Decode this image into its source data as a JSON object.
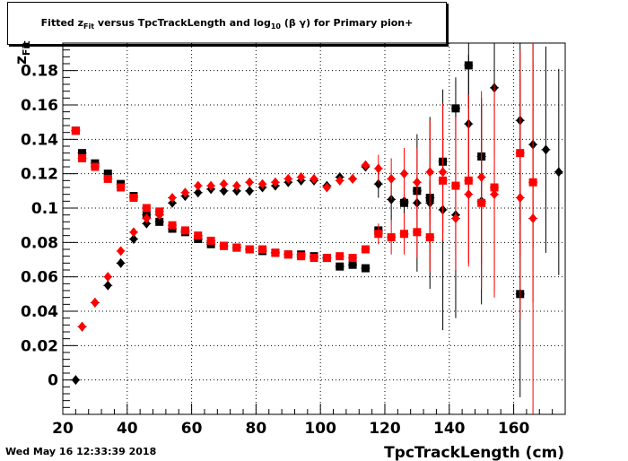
{
  "title": {
    "prefix": "Fitted  z",
    "sub1": "Fit",
    "mid": "  versus TpcTrackLength and log",
    "sub2": "10",
    "suffix": " (β γ) for Primary pion+"
  },
  "timestamp": "Wed May 16 12:33:39 2018",
  "chart_data": {
    "type": "scatter",
    "xlabel": "TpcTrackLength (cm)",
    "ylabel": "z",
    "ylabel_sub": "Fit",
    "xlim": [
      20,
      176
    ],
    "ylim": [
      -0.02,
      0.196
    ],
    "xticks": [
      20,
      40,
      60,
      80,
      100,
      120,
      140,
      160
    ],
    "yticks": [
      0,
      0.02,
      0.04,
      0.06,
      0.08,
      0.1,
      0.12,
      0.14,
      0.16,
      0.18
    ],
    "ytick_labels": [
      "0",
      "0.02",
      "0.04",
      "0.06",
      "0.08",
      "0.1",
      "0.12",
      "0.14",
      "0.16",
      "0.18"
    ],
    "grid": true,
    "colors": {
      "series_black": "#000000",
      "series_red": "#ff0000"
    },
    "series": [
      {
        "color": "#000000",
        "marker": "square",
        "points": [
          [
            24,
            0.145,
            0
          ],
          [
            26,
            0.132,
            0
          ],
          [
            30,
            0.126,
            0
          ],
          [
            34,
            0.12,
            0
          ],
          [
            38,
            0.114,
            0
          ],
          [
            42,
            0.107,
            0
          ],
          [
            46,
            0.096,
            0
          ],
          [
            50,
            0.092,
            0
          ],
          [
            54,
            0.088,
            0
          ],
          [
            58,
            0.086,
            0
          ],
          [
            62,
            0.082,
            0
          ],
          [
            66,
            0.079,
            0
          ],
          [
            70,
            0.078,
            0
          ],
          [
            74,
            0.077,
            0
          ],
          [
            78,
            0.076,
            0
          ],
          [
            82,
            0.075,
            0
          ],
          [
            86,
            0.074,
            0
          ],
          [
            90,
            0.073,
            0
          ],
          [
            94,
            0.073,
            0
          ],
          [
            98,
            0.072,
            0
          ],
          [
            102,
            0.071,
            0
          ],
          [
            106,
            0.066,
            0
          ],
          [
            110,
            0.067,
            0
          ],
          [
            114,
            0.065,
            0
          ],
          [
            118,
            0.087,
            0
          ],
          [
            126,
            0.103,
            0.004
          ],
          [
            130,
            0.11,
            0.008
          ],
          [
            134,
            0.106,
            0.01
          ],
          [
            138,
            0.127,
            0.012
          ],
          [
            142,
            0.158,
            0.018
          ],
          [
            146,
            0.183,
            0.025
          ],
          [
            150,
            0.13,
            0.03
          ],
          [
            162,
            0.05,
            0.06
          ]
        ]
      },
      {
        "color": "#000000",
        "marker": "diamond",
        "points": [
          [
            24,
            0.0,
            0
          ],
          [
            26,
            0.031,
            0
          ],
          [
            30,
            0.045,
            0
          ],
          [
            34,
            0.055,
            0
          ],
          [
            38,
            0.068,
            0
          ],
          [
            42,
            0.082,
            0
          ],
          [
            46,
            0.091,
            0
          ],
          [
            50,
            0.096,
            0
          ],
          [
            54,
            0.103,
            0
          ],
          [
            58,
            0.107,
            0
          ],
          [
            62,
            0.109,
            0
          ],
          [
            66,
            0.111,
            0
          ],
          [
            70,
            0.11,
            0
          ],
          [
            74,
            0.11,
            0
          ],
          [
            78,
            0.11,
            0
          ],
          [
            82,
            0.112,
            0
          ],
          [
            86,
            0.113,
            0
          ],
          [
            90,
            0.115,
            0
          ],
          [
            94,
            0.116,
            0
          ],
          [
            98,
            0.116,
            0
          ],
          [
            102,
            0.113,
            0
          ],
          [
            106,
            0.118,
            0
          ],
          [
            110,
            0.117,
            0
          ],
          [
            114,
            0.124,
            0
          ],
          [
            118,
            0.114,
            0.008
          ],
          [
            122,
            0.105,
            0.012
          ],
          [
            126,
            0.104,
            0.015
          ],
          [
            130,
            0.103,
            0.04
          ],
          [
            134,
            0.103,
            0.05
          ],
          [
            138,
            0.099,
            0.07
          ],
          [
            142,
            0.096,
            0.06
          ],
          [
            146,
            0.149,
            0.04
          ],
          [
            150,
            0.104,
            0.06
          ],
          [
            154,
            0.17,
            0.04
          ],
          [
            162,
            0.151,
            0.06
          ],
          [
            166,
            0.137,
            0.06
          ],
          [
            170,
            0.134,
            0.06
          ],
          [
            174,
            0.121,
            0.06
          ]
        ]
      },
      {
        "color": "#ff0000",
        "marker": "square",
        "points": [
          [
            24,
            0.145,
            0
          ],
          [
            26,
            0.129,
            0
          ],
          [
            30,
            0.124,
            0
          ],
          [
            34,
            0.117,
            0
          ],
          [
            38,
            0.112,
            0
          ],
          [
            42,
            0.106,
            0
          ],
          [
            46,
            0.1,
            0
          ],
          [
            50,
            0.098,
            0
          ],
          [
            54,
            0.09,
            0
          ],
          [
            58,
            0.087,
            0
          ],
          [
            62,
            0.084,
            0
          ],
          [
            66,
            0.081,
            0
          ],
          [
            70,
            0.078,
            0
          ],
          [
            74,
            0.077,
            0
          ],
          [
            78,
            0.076,
            0
          ],
          [
            82,
            0.076,
            0
          ],
          [
            86,
            0.074,
            0
          ],
          [
            90,
            0.073,
            0
          ],
          [
            94,
            0.072,
            0
          ],
          [
            98,
            0.071,
            0
          ],
          [
            102,
            0.071,
            0
          ],
          [
            106,
            0.072,
            0
          ],
          [
            110,
            0.071,
            0
          ],
          [
            114,
            0.076,
            0
          ],
          [
            118,
            0.085,
            0.006
          ],
          [
            122,
            0.083,
            0.01
          ],
          [
            126,
            0.085,
            0.012
          ],
          [
            130,
            0.086,
            0.015
          ],
          [
            134,
            0.083,
            0.02
          ],
          [
            138,
            0.116,
            0.03
          ],
          [
            142,
            0.113,
            0.04
          ],
          [
            146,
            0.116,
            0.05
          ],
          [
            150,
            0.103,
            0.05
          ],
          [
            154,
            0.112,
            0.06
          ],
          [
            162,
            0.132,
            0.06
          ],
          [
            166,
            0.115,
            0.07
          ]
        ]
      },
      {
        "color": "#ff0000",
        "marker": "diamond",
        "points": [
          [
            26,
            0.031,
            0
          ],
          [
            30,
            0.045,
            0
          ],
          [
            34,
            0.06,
            0
          ],
          [
            38,
            0.075,
            0
          ],
          [
            42,
            0.086,
            0
          ],
          [
            46,
            0.094,
            0
          ],
          [
            50,
            0.096,
            0
          ],
          [
            54,
            0.106,
            0
          ],
          [
            58,
            0.109,
            0
          ],
          [
            62,
            0.113,
            0
          ],
          [
            66,
            0.113,
            0
          ],
          [
            70,
            0.114,
            0
          ],
          [
            74,
            0.113,
            0
          ],
          [
            78,
            0.115,
            0
          ],
          [
            82,
            0.114,
            0
          ],
          [
            86,
            0.115,
            0
          ],
          [
            90,
            0.117,
            0
          ],
          [
            94,
            0.118,
            0
          ],
          [
            98,
            0.117,
            0
          ],
          [
            102,
            0.112,
            0
          ],
          [
            106,
            0.116,
            0
          ],
          [
            110,
            0.117,
            0
          ],
          [
            114,
            0.125,
            0
          ],
          [
            118,
            0.123,
            0.008
          ],
          [
            122,
            0.117,
            0.012
          ],
          [
            126,
            0.12,
            0.015
          ],
          [
            130,
            0.115,
            0.02
          ],
          [
            134,
            0.121,
            0.03
          ],
          [
            138,
            0.121,
            0.04
          ],
          [
            142,
            0.094,
            0.03
          ],
          [
            146,
            0.108,
            0.04
          ],
          [
            150,
            0.118,
            0.05
          ],
          [
            154,
            0.108,
            0.06
          ],
          [
            162,
            0.106,
            0.07
          ],
          [
            166,
            0.094,
            0.2
          ]
        ]
      }
    ]
  }
}
